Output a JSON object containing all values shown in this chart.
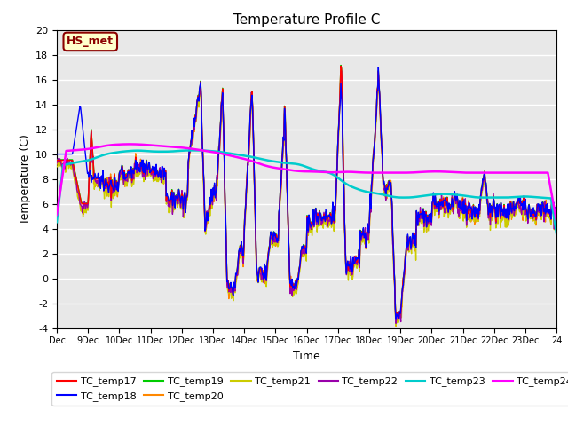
{
  "title": "Temperature Profile C",
  "xlabel": "Time",
  "ylabel": "Temperature (C)",
  "ylim": [
    -4,
    20
  ],
  "xlim": [
    0,
    16
  ],
  "xtick_labels": [
    "Dec",
    "9Dec",
    "10Dec",
    "11Dec",
    "12Dec",
    "13Dec",
    "14Dec",
    "15Dec",
    "16Dec",
    "17Dec",
    "18Dec",
    "19Dec",
    "20Dec",
    "21Dec",
    "22Dec",
    "23Dec",
    "24"
  ],
  "background_color": "#e8e8e8",
  "annotation_text": "HS_met",
  "annotation_color": "#8b0000",
  "annotation_bg": "#ffffcc",
  "series_colors": {
    "TC_temp17": "#ff0000",
    "TC_temp18": "#0000ff",
    "TC_temp19": "#00cc00",
    "TC_temp20": "#ff8800",
    "TC_temp21": "#cccc00",
    "TC_temp22": "#9900aa",
    "TC_temp23": "#00cccc",
    "TC_temp24": "#ff00ff"
  }
}
